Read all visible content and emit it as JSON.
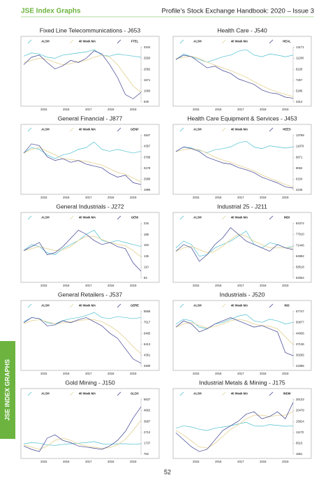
{
  "header": {
    "left": "JSE Index Graphs",
    "right": "Profile’s Stock Exchange Handbook: 2020 – Issue 3"
  },
  "side_tab": "JSE INDEX GRAPHS",
  "page_number": "52",
  "chart_data": [
    {
      "type": "line",
      "title": "Fixed Line Telecommunications - J653",
      "x": [
        2014.6,
        2014.95,
        2015.3,
        2015.65,
        2016,
        2016.35,
        2016.7,
        2017.05,
        2017.4,
        2017.75,
        2018.1,
        2018.45,
        2018.8,
        2019.15,
        2019.5,
        2019.85
      ],
      "xlim": [
        2014.6,
        2019.85
      ],
      "xticks": [
        2015,
        2016,
        2017,
        2018,
        2019
      ],
      "ylim": [
        549,
        3104
      ],
      "yticks": [
        549,
        1060,
        1571,
        2082,
        2593,
        3104
      ],
      "series": [
        {
          "name": "ALSH",
          "color": "#4bbfd0",
          "values": [
            2700,
            2850,
            2800,
            2650,
            2600,
            2750,
            2800,
            2850,
            2900,
            3000,
            2750,
            2700,
            2800,
            2750,
            2700,
            2650
          ]
        },
        {
          "name": "40 Week MA",
          "color": "#e6d59a",
          "values": [
            2400,
            2500,
            2600,
            2550,
            2400,
            2300,
            2350,
            2450,
            2500,
            2650,
            2750,
            2650,
            2300,
            1800,
            1300,
            1000
          ]
        },
        {
          "name": "FTEL",
          "color": "#3b3f8f",
          "values": [
            2300,
            2650,
            2750,
            2400,
            2100,
            2250,
            2500,
            2400,
            2600,
            2950,
            2800,
            2300,
            1700,
            900,
            700,
            1000
          ]
        }
      ]
    },
    {
      "type": "line",
      "title": "Health Care - J540",
      "x": [
        2014.6,
        2014.95,
        2015.3,
        2015.65,
        2016,
        2016.35,
        2016.7,
        2017.05,
        2017.4,
        2017.75,
        2018.1,
        2018.45,
        2018.8,
        2019.15,
        2019.5,
        2019.85
      ],
      "xlim": [
        2014.6,
        2019.85
      ],
      "xticks": [
        2015,
        2016,
        2017,
        2018,
        2019
      ],
      "ylim": [
        3314,
        13171
      ],
      "yticks": [
        3314,
        5286,
        7257,
        9228,
        11200,
        13171
      ],
      "series": [
        {
          "name": "ALSH",
          "color": "#4bbfd0",
          "values": [
            11000,
            12000,
            11500,
            11000,
            10500,
            11000,
            11500,
            11800,
            12500,
            12800,
            11800,
            11500,
            12000,
            11800,
            11500,
            11800
          ]
        },
        {
          "name": "40 Week MA",
          "color": "#e6d59a",
          "values": [
            11200,
            11400,
            11600,
            11200,
            10500,
            10000,
            9500,
            9000,
            8400,
            7800,
            7000,
            6300,
            5600,
            5100,
            4700,
            4300
          ]
        },
        {
          "name": "HEAL",
          "color": "#3b3f8f",
          "values": [
            11000,
            11800,
            11500,
            10500,
            9500,
            9800,
            9000,
            8500,
            7500,
            7000,
            6500,
            5500,
            5000,
            4800,
            4200,
            4000
          ]
        }
      ]
    },
    {
      "type": "line",
      "title": "General Financial - J877",
      "x": [
        2014.6,
        2014.95,
        2015.3,
        2015.65,
        2016,
        2016.35,
        2016.7,
        2017.05,
        2017.4,
        2017.75,
        2018.1,
        2018.45,
        2018.8,
        2019.15,
        2019.5,
        2019.85
      ],
      "xlim": [
        2014.6,
        2019.85
      ],
      "xticks": [
        2015,
        2016,
        2017,
        2018,
        2019
      ],
      "ylim": [
        1999,
        4947
      ],
      "yticks": [
        1999,
        2589,
        3178,
        3768,
        4357,
        4947
      ],
      "series": [
        {
          "name": "ALSH",
          "color": "#4bbfd0",
          "values": [
            4000,
            4300,
            4200,
            3900,
            3700,
            3900,
            4000,
            4200,
            4300,
            4600,
            4200,
            4100,
            4200,
            4100,
            4000,
            4100
          ]
        },
        {
          "name": "40 Week MA",
          "color": "#e6d59a",
          "values": [
            4000,
            4200,
            4300,
            4100,
            3900,
            3700,
            3650,
            3600,
            3550,
            3450,
            3350,
            3150,
            2950,
            2850,
            2650,
            2450
          ]
        },
        {
          "name": "GENF",
          "color": "#3b3f8f",
          "values": [
            4000,
            4500,
            4400,
            3800,
            3600,
            3700,
            3500,
            3600,
            3400,
            3300,
            3200,
            2900,
            2700,
            2800,
            2400,
            2300
          ]
        }
      ]
    },
    {
      "type": "line",
      "title": "Health Care Equipment & Services - J453",
      "x": [
        2014.6,
        2014.95,
        2015.3,
        2015.65,
        2016,
        2016.35,
        2016.7,
        2017.05,
        2017.4,
        2017.75,
        2018.1,
        2018.45,
        2018.8,
        2019.15,
        2019.5,
        2019.85
      ],
      "xlim": [
        2014.6,
        2019.85
      ],
      "xticks": [
        2015,
        2016,
        2017,
        2018,
        2019
      ],
      "ylim": [
        4245,
        13788
      ],
      "yticks": [
        4245,
        6154,
        8062,
        9971,
        11879,
        13788
      ],
      "series": [
        {
          "name": "ALSH",
          "color": "#4bbfd0",
          "values": [
            11000,
            11800,
            11600,
            11200,
            10800,
            11300,
            11500,
            11800,
            12500,
            12800,
            11800,
            11500,
            12000,
            11800,
            11600,
            11800
          ]
        },
        {
          "name": "40 Week MA",
          "color": "#e6d59a",
          "values": [
            11000,
            11300,
            11500,
            11300,
            10700,
            10000,
            9500,
            9100,
            8600,
            8100,
            7600,
            6900,
            6300,
            5800,
            5200,
            4800
          ]
        },
        {
          "name": "HEES",
          "color": "#3b3f8f",
          "values": [
            11000,
            11800,
            11500,
            11000,
            10000,
            9500,
            9000,
            8800,
            8200,
            7800,
            7300,
            6500,
            6000,
            5500,
            4800,
            4600
          ]
        }
      ]
    },
    {
      "type": "line",
      "title": "General Industrials - J272",
      "x": [
        2014.6,
        2014.95,
        2015.3,
        2015.65,
        2016,
        2016.35,
        2016.7,
        2017.05,
        2017.4,
        2017.75,
        2018.1,
        2018.45,
        2018.8,
        2019.15,
        2019.5,
        2019.85
      ],
      "xlim": [
        2014.6,
        2019.85
      ],
      "xticks": [
        2015,
        2016,
        2017,
        2018,
        2019
      ],
      "ylim": [
        83,
        216
      ],
      "yticks": [
        83,
        110,
        136,
        163,
        189,
        216
      ],
      "series": [
        {
          "name": "ALSH",
          "color": "#4bbfd0",
          "values": [
            150,
            165,
            160,
            145,
            140,
            155,
            165,
            175,
            190,
            200,
            175,
            170,
            175,
            170,
            165,
            160
          ]
        },
        {
          "name": "40 Week MA",
          "color": "#e6d59a",
          "values": [
            150,
            155,
            160,
            155,
            150,
            152,
            160,
            175,
            185,
            185,
            178,
            170,
            166,
            162,
            150,
            135
          ]
        },
        {
          "name": "GENI",
          "color": "#3b3f8f",
          "values": [
            150,
            160,
            170,
            140,
            145,
            160,
            180,
            200,
            190,
            175,
            165,
            170,
            160,
            155,
            120,
            100
          ]
        }
      ]
    },
    {
      "type": "line",
      "title": "Industrial 25 - J211",
      "x": [
        2014.6,
        2014.95,
        2015.3,
        2015.65,
        2016,
        2016.35,
        2016.7,
        2017.05,
        2017.4,
        2017.75,
        2018.1,
        2018.45,
        2018.8,
        2019.15,
        2019.5,
        2019.85
      ],
      "xlim": [
        2014.6,
        2019.85
      ],
      "xticks": [
        2015,
        2016,
        2017,
        2018,
        2019
      ],
      "ylim": [
        52054,
        84374
      ],
      "yticks": [
        52054,
        58518,
        64982,
        71446,
        77910,
        84374
      ],
      "series": [
        {
          "name": "ALSH",
          "color": "#4bbfd0",
          "values": [
            70000,
            74000,
            72000,
            65000,
            66000,
            70000,
            72000,
            74000,
            77000,
            80000,
            72000,
            70000,
            73000,
            72000,
            70000,
            71000
          ]
        },
        {
          "name": "40 Week MA",
          "color": "#e6d59a",
          "values": [
            68000,
            70000,
            71000,
            69000,
            67000,
            68000,
            71000,
            75000,
            78000,
            77000,
            74000,
            72000,
            70000,
            70000,
            70000,
            70000
          ]
        },
        {
          "name": "INDI",
          "color": "#3b3f8f",
          "values": [
            68000,
            72000,
            70000,
            62000,
            66000,
            72000,
            76000,
            82000,
            78000,
            74000,
            72000,
            70000,
            68000,
            72000,
            70000,
            69000
          ]
        }
      ]
    },
    {
      "type": "line",
      "title": "General Retailers - J537",
      "x": [
        2014.6,
        2014.95,
        2015.3,
        2015.65,
        2016,
        2016.35,
        2016.7,
        2017.05,
        2017.4,
        2017.75,
        2018.1,
        2018.45,
        2018.8,
        2019.15,
        2019.5,
        2019.85
      ],
      "xlim": [
        2014.6,
        2019.85
      ],
      "xticks": [
        2015,
        2016,
        2017,
        2018,
        2019
      ],
      "ylim": [
        3309,
        8569
      ],
      "yticks": [
        3309,
        4361,
        5413,
        6465,
        7517,
        8569
      ],
      "series": [
        {
          "name": "ALSH",
          "color": "#4bbfd0",
          "values": [
            7600,
            8000,
            7900,
            7500,
            7400,
            7700,
            7900,
            8000,
            8200,
            8500,
            8000,
            7900,
            8100,
            8000,
            7900,
            8000
          ]
        },
        {
          "name": "40 Week MA",
          "color": "#e6d59a",
          "values": [
            7400,
            7700,
            7800,
            7600,
            7400,
            7500,
            7600,
            7700,
            7800,
            7800,
            7600,
            7200,
            6700,
            6000,
            5200,
            4500
          ]
        },
        {
          "name": "GERE",
          "color": "#3b3f8f",
          "values": [
            7500,
            8000,
            7900,
            7200,
            7300,
            7700,
            7500,
            7800,
            8000,
            7600,
            7200,
            6500,
            6000,
            5000,
            4000,
            3600
          ]
        }
      ]
    },
    {
      "type": "line",
      "title": "Industrials - J520",
      "x": [
        2014.6,
        2014.95,
        2015.3,
        2015.65,
        2016,
        2016.35,
        2016.7,
        2017.05,
        2017.4,
        2017.75,
        2018.1,
        2018.45,
        2018.8,
        2019.15,
        2019.5,
        2019.85
      ],
      "xlim": [
        2014.6,
        2019.85
      ],
      "xticks": [
        2015,
        2016,
        2017,
        2018,
        2019
      ],
      "ylim": [
        23395,
        57747
      ],
      "yticks": [
        23395,
        30265,
        37136,
        44006,
        50877,
        57747
      ],
      "series": [
        {
          "name": "ALSH",
          "color": "#4bbfd0",
          "values": [
            50000,
            53000,
            52000,
            48000,
            47000,
            50000,
            51000,
            53000,
            55000,
            56000,
            52000,
            51000,
            53000,
            52000,
            50000,
            51000
          ]
        },
        {
          "name": "40 Week MA",
          "color": "#e6d59a",
          "values": [
            48000,
            50000,
            51000,
            49000,
            47500,
            48500,
            50000,
            52000,
            53000,
            52000,
            50000,
            49000,
            48500,
            47000,
            42000,
            37000
          ]
        },
        {
          "name": "IND",
          "color": "#3b3f8f",
          "values": [
            48000,
            52000,
            50000,
            45000,
            47000,
            50000,
            52000,
            54000,
            52000,
            50000,
            48000,
            49000,
            47000,
            45000,
            32000,
            30000
          ]
        }
      ]
    },
    {
      "type": "line",
      "title": "Gold Mining - J150",
      "x": [
        2014.6,
        2014.95,
        2015.3,
        2015.65,
        2016,
        2016.35,
        2016.7,
        2017.05,
        2017.4,
        2017.75,
        2018.1,
        2018.45,
        2018.8,
        2019.15,
        2019.5,
        2019.85
      ],
      "xlim": [
        2014.6,
        2019.85
      ],
      "xticks": [
        2015,
        2016,
        2017,
        2018,
        2019
      ],
      "ylim": [
        762,
        5637
      ],
      "yticks": [
        762,
        1737,
        2712,
        3687,
        4662,
        5637
      ],
      "series": [
        {
          "name": "ALSH",
          "color": "#4bbfd0",
          "values": [
            1700,
            1800,
            1750,
            1600,
            1550,
            1650,
            1700,
            1750,
            1800,
            1900,
            1700,
            1650,
            1700,
            1700,
            1650,
            1700
          ]
        },
        {
          "name": "40 Week MA",
          "color": "#e6d59a",
          "values": [
            1600,
            1400,
            1200,
            1500,
            2000,
            2200,
            2000,
            1700,
            1500,
            1400,
            1300,
            1350,
            1600,
            2100,
            2900,
            3800
          ]
        },
        {
          "name": "GLDX",
          "color": "#3b3f8f",
          "values": [
            1500,
            1200,
            1000,
            2200,
            2500,
            2000,
            1800,
            1500,
            1400,
            1300,
            1200,
            1500,
            2000,
            2800,
            4000,
            5000
          ]
        }
      ]
    },
    {
      "type": "line",
      "title": "Industrial Metals & Mining - J175",
      "x": [
        2014.6,
        2014.95,
        2015.3,
        2015.65,
        2016,
        2016.35,
        2016.7,
        2017.05,
        2017.4,
        2017.75,
        2018.1,
        2018.45,
        2018.8,
        2019.15,
        2019.5,
        2019.85
      ],
      "xlim": [
        2014.6,
        2019.85
      ],
      "xticks": [
        2015,
        2016,
        2017,
        2018,
        2019
      ],
      "ylim": [
        1861,
        25133
      ],
      "yticks": [
        1861,
        6515,
        11170,
        15824,
        20479,
        25133
      ],
      "series": [
        {
          "name": "ALSH",
          "color": "#4bbfd0",
          "values": [
            13000,
            14000,
            13500,
            12500,
            12000,
            13000,
            13500,
            14000,
            14800,
            15500,
            14000,
            13800,
            14500,
            14200,
            13800,
            14000
          ]
        },
        {
          "name": "40 Week MA",
          "color": "#e6d59a",
          "values": [
            12000,
            10000,
            7500,
            5000,
            4500,
            6500,
            9500,
            12500,
            14500,
            17000,
            18500,
            18500,
            18000,
            18500,
            18500,
            20000
          ]
        },
        {
          "name": "INDM",
          "color": "#3b3f8f",
          "values": [
            11000,
            8000,
            5000,
            3000,
            4000,
            8000,
            12000,
            14000,
            16000,
            19000,
            20000,
            17000,
            18000,
            20000,
            17000,
            24000
          ]
        }
      ]
    }
  ]
}
